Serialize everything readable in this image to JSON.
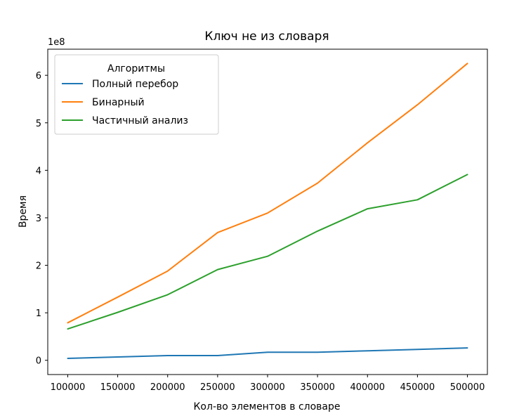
{
  "chart_data": {
    "type": "line",
    "title": "Ключ не из словаря",
    "xlabel": "Кол-во элементов в словаре",
    "ylabel": "Время",
    "y_offset_label": "1e8",
    "x": [
      100000,
      150000,
      200000,
      250000,
      300000,
      350000,
      400000,
      450000,
      500000
    ],
    "x_ticks": [
      "100000",
      "150000",
      "200000",
      "250000",
      "300000",
      "350000",
      "400000",
      "450000",
      "500000"
    ],
    "y_ticks": [
      "0",
      "1",
      "2",
      "3",
      "4",
      "5",
      "6"
    ],
    "xlim": [
      80000,
      520000
    ],
    "ylim": [
      -0.3,
      6.55
    ],
    "grid": false,
    "legend": {
      "title": "Алгоритмы",
      "position": "top-left"
    },
    "series": [
      {
        "name": "Полный перебор",
        "color": "#1f77b4",
        "values": [
          0.04,
          0.07,
          0.1,
          0.1,
          0.17,
          0.17,
          0.2,
          0.23,
          0.26
        ]
      },
      {
        "name": "Бинарный",
        "color": "#ff7f0e",
        "values": [
          0.79,
          1.33,
          1.88,
          2.69,
          3.1,
          3.73,
          4.58,
          5.38,
          6.25
        ]
      },
      {
        "name": "Частичный анализ",
        "color": "#2ca02c",
        "values": [
          0.66,
          1.01,
          1.38,
          1.91,
          2.19,
          2.72,
          3.19,
          3.38,
          3.91
        ]
      }
    ]
  }
}
